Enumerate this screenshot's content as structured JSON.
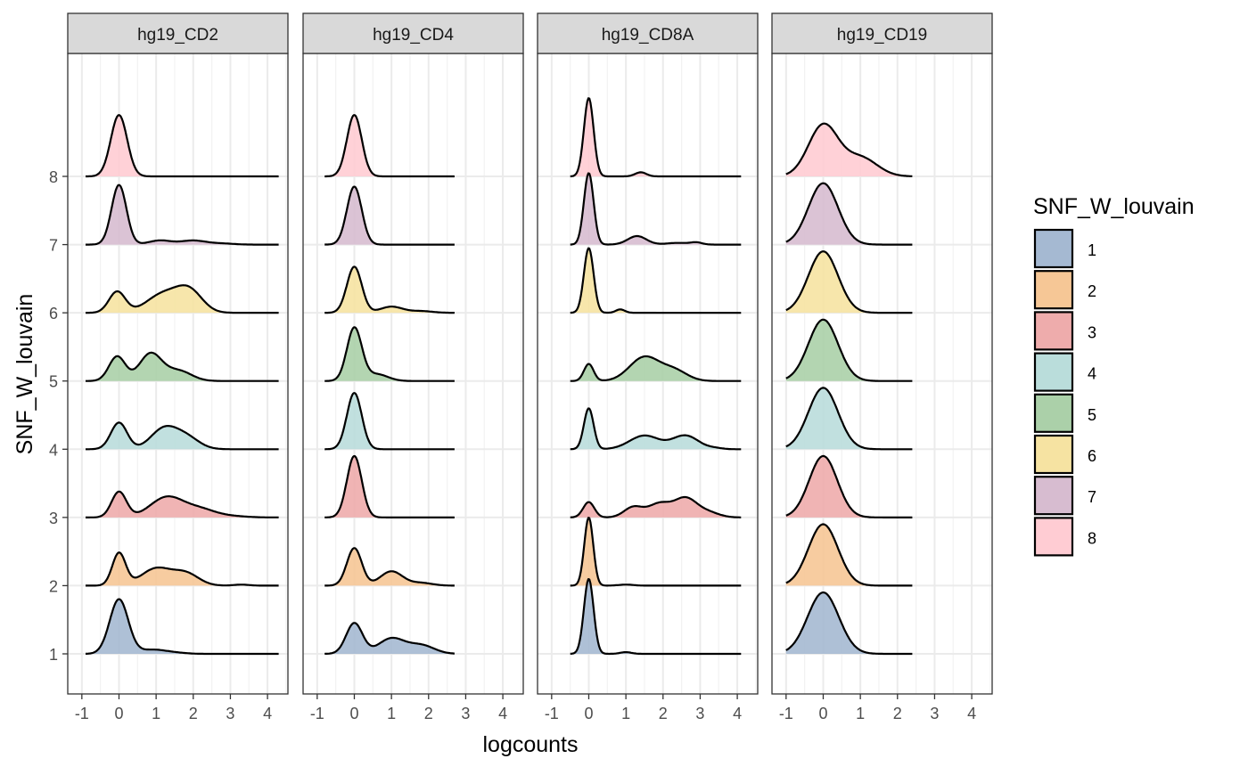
{
  "chart_data": {
    "type": "ridgeline-density",
    "xlabel": "logcounts",
    "ylabel": "SNF_W_louvain",
    "xlim": [
      -1.38,
      4.55
    ],
    "x_ticks": [
      "-1",
      "0",
      "1",
      "2",
      "3",
      "4"
    ],
    "x_tick_values": [
      -1,
      0,
      1,
      2,
      3,
      4
    ],
    "y_ticks": [
      "1",
      "2",
      "3",
      "4",
      "5",
      "6",
      "7",
      "8"
    ],
    "grid": true,
    "legend": {
      "title": "SNF_W_louvain",
      "placement": "right",
      "entries": [
        "1",
        "2",
        "3",
        "4",
        "5",
        "6",
        "7",
        "8"
      ],
      "colors": [
        "#a5b9d2",
        "#f6c796",
        "#eeacac",
        "#badddb",
        "#abd0a9",
        "#f6e3a2",
        "#d7bcd0",
        "#ffccd3"
      ]
    },
    "facets": [
      {
        "title": "hg19_CD2",
        "range": [
          -0.9,
          4.3
        ],
        "groups": [
          {
            "group": "1",
            "components": [
              [
                0.0,
                0.25,
                1.6
              ],
              [
                0.9,
                0.35,
                0.12
              ],
              [
                1.5,
                0.3,
                0.03
              ]
            ]
          },
          {
            "group": "2",
            "components": [
              [
                0.0,
                0.18,
                0.95
              ],
              [
                1.0,
                0.4,
                0.5
              ],
              [
                1.8,
                0.35,
                0.35
              ],
              [
                3.3,
                0.2,
                0.03
              ]
            ]
          },
          {
            "group": "3",
            "components": [
              [
                0.0,
                0.2,
                0.75
              ],
              [
                1.3,
                0.45,
                0.6
              ],
              [
                2.2,
                0.4,
                0.22
              ],
              [
                3.0,
                0.4,
                0.04
              ]
            ]
          },
          {
            "group": "4",
            "components": [
              [
                0.0,
                0.22,
                0.78
              ],
              [
                1.2,
                0.35,
                0.58
              ],
              [
                1.8,
                0.35,
                0.35
              ]
            ]
          },
          {
            "group": "5",
            "components": [
              [
                -0.05,
                0.22,
                0.72
              ],
              [
                0.85,
                0.3,
                0.8
              ],
              [
                1.6,
                0.35,
                0.3
              ]
            ]
          },
          {
            "group": "6",
            "components": [
              [
                -0.05,
                0.22,
                0.62
              ],
              [
                1.2,
                0.45,
                0.55
              ],
              [
                1.9,
                0.35,
                0.6
              ]
            ]
          },
          {
            "group": "7",
            "components": [
              [
                0.0,
                0.2,
                1.75
              ],
              [
                1.1,
                0.3,
                0.12
              ],
              [
                2.0,
                0.35,
                0.12
              ],
              [
                2.8,
                0.3,
                0.03
              ]
            ]
          },
          {
            "group": "8",
            "components": [
              [
                0.0,
                0.22,
                1.8
              ]
            ]
          }
        ]
      },
      {
        "title": "hg19_CD4",
        "range": [
          -0.8,
          2.7
        ],
        "groups": [
          {
            "group": "1",
            "components": [
              [
                0.0,
                0.22,
                0.9
              ],
              [
                1.0,
                0.35,
                0.45
              ],
              [
                1.8,
                0.35,
                0.25
              ]
            ]
          },
          {
            "group": "2",
            "components": [
              [
                0.0,
                0.2,
                1.1
              ],
              [
                1.0,
                0.3,
                0.42
              ],
              [
                1.8,
                0.3,
                0.08
              ]
            ]
          },
          {
            "group": "3",
            "components": [
              [
                0.0,
                0.2,
                1.8
              ]
            ]
          },
          {
            "group": "4",
            "components": [
              [
                0.0,
                0.2,
                1.65
              ]
            ]
          },
          {
            "group": "5",
            "components": [
              [
                0.0,
                0.2,
                1.55
              ],
              [
                0.6,
                0.3,
                0.2
              ]
            ]
          },
          {
            "group": "6",
            "components": [
              [
                0.0,
                0.2,
                1.35
              ],
              [
                1.0,
                0.3,
                0.18
              ],
              [
                1.8,
                0.3,
                0.05
              ]
            ]
          },
          {
            "group": "7",
            "components": [
              [
                0.0,
                0.2,
                1.7
              ]
            ]
          },
          {
            "group": "8",
            "components": [
              [
                0.0,
                0.2,
                1.8
              ]
            ]
          }
        ]
      },
      {
        "title": "hg19_CD8A",
        "range": [
          -0.5,
          4.1
        ],
        "groups": [
          {
            "group": "1",
            "components": [
              [
                0.0,
                0.13,
                2.2
              ],
              [
                1.0,
                0.15,
                0.05
              ]
            ]
          },
          {
            "group": "2",
            "components": [
              [
                0.0,
                0.12,
                2.0
              ],
              [
                1.0,
                0.2,
                0.03
              ]
            ]
          },
          {
            "group": "3",
            "components": [
              [
                0.0,
                0.15,
                0.45
              ],
              [
                1.2,
                0.25,
                0.3
              ],
              [
                1.9,
                0.3,
                0.4
              ],
              [
                2.6,
                0.3,
                0.55
              ],
              [
                3.2,
                0.3,
                0.15
              ]
            ]
          },
          {
            "group": "4",
            "components": [
              [
                0.0,
                0.13,
                1.2
              ],
              [
                1.5,
                0.4,
                0.4
              ],
              [
                2.6,
                0.35,
                0.4
              ],
              [
                3.4,
                0.2,
                0.03
              ]
            ]
          },
          {
            "group": "5",
            "components": [
              [
                0.0,
                0.13,
                0.5
              ],
              [
                1.5,
                0.4,
                0.7
              ],
              [
                2.3,
                0.35,
                0.3
              ]
            ]
          },
          {
            "group": "6",
            "components": [
              [
                0.0,
                0.13,
                1.9
              ],
              [
                0.85,
                0.12,
                0.1
              ]
            ]
          },
          {
            "group": "7",
            "components": [
              [
                0.0,
                0.13,
                2.1
              ],
              [
                1.3,
                0.25,
                0.25
              ],
              [
                2.4,
                0.3,
                0.05
              ],
              [
                2.9,
                0.15,
                0.06
              ]
            ]
          },
          {
            "group": "8",
            "components": [
              [
                0.0,
                0.13,
                2.3
              ],
              [
                1.4,
                0.15,
                0.12
              ]
            ]
          }
        ]
      },
      {
        "title": "hg19_CD19",
        "range": [
          -1.0,
          2.4
        ],
        "groups": [
          {
            "group": "1",
            "components": [
              [
                0.0,
                0.42,
                1.8
              ]
            ]
          },
          {
            "group": "2",
            "components": [
              [
                0.0,
                0.4,
                1.8
              ]
            ]
          },
          {
            "group": "3",
            "components": [
              [
                0.0,
                0.38,
                1.8
              ]
            ]
          },
          {
            "group": "4",
            "components": [
              [
                0.0,
                0.4,
                1.8
              ]
            ]
          },
          {
            "group": "5",
            "components": [
              [
                0.0,
                0.4,
                1.8
              ]
            ]
          },
          {
            "group": "6",
            "components": [
              [
                0.0,
                0.4,
                1.8
              ]
            ]
          },
          {
            "group": "7",
            "components": [
              [
                0.0,
                0.4,
                1.8
              ]
            ]
          },
          {
            "group": "8",
            "components": [
              [
                0.0,
                0.4,
                1.5
              ],
              [
                1.0,
                0.45,
                0.55
              ]
            ]
          }
        ]
      }
    ]
  }
}
